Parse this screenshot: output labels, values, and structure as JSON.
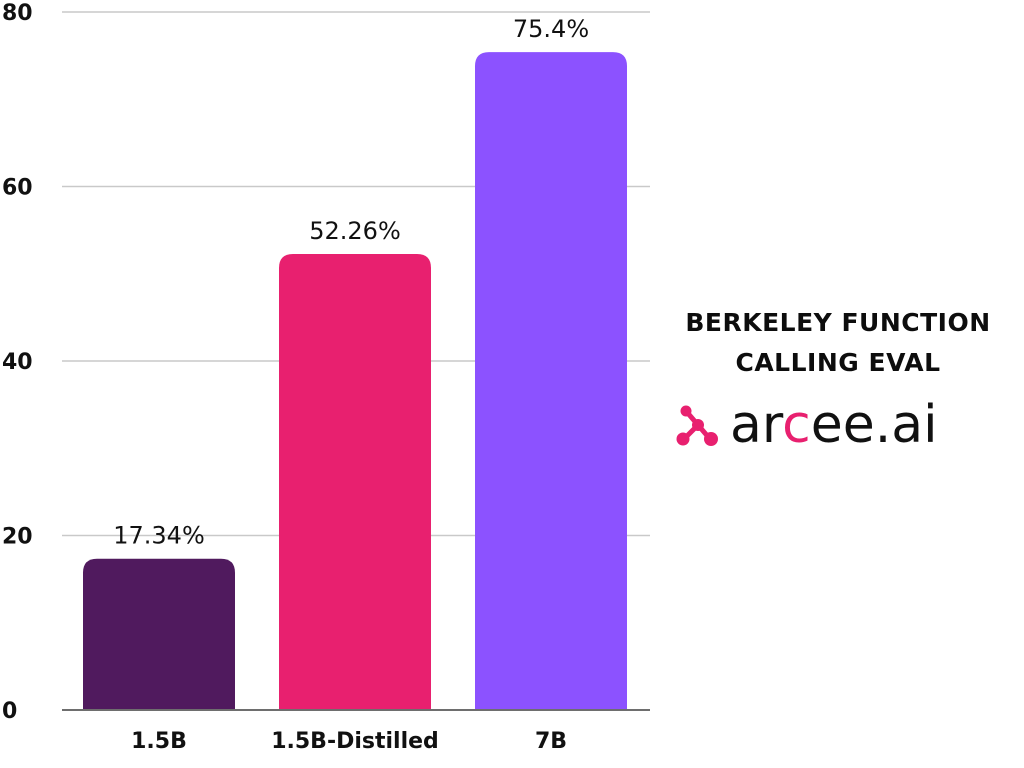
{
  "chart_data": {
    "type": "bar",
    "title_lines": [
      "BERKELEY FUNCTION",
      "CALLING EVAL"
    ],
    "categories": [
      "1.5B",
      "1.5B-Distilled",
      "7B"
    ],
    "values": [
      17.34,
      52.26,
      75.4
    ],
    "value_labels": [
      "17.34%",
      "52.26%",
      "75.4%"
    ],
    "bar_colors": [
      "#501a5e",
      "#e8206f",
      "#8c52ff"
    ],
    "ylim": [
      0,
      80
    ],
    "yticks": [
      "0",
      "20",
      "40",
      "60",
      "80"
    ],
    "grid": true,
    "xlabel": "",
    "ylabel": ""
  },
  "brand": {
    "logo_icon": "arcee-molecule-icon",
    "parts": [
      "ar",
      "c",
      "ee.ai"
    ],
    "dark_color": "#111111",
    "accent_color": "#e8206f"
  }
}
